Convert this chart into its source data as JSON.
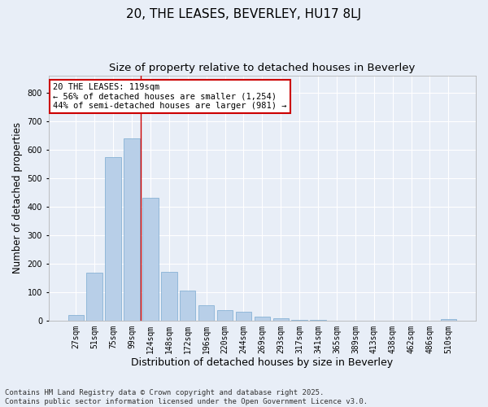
{
  "title": "20, THE LEASES, BEVERLEY, HU17 8LJ",
  "subtitle": "Size of property relative to detached houses in Beverley",
  "xlabel": "Distribution of detached houses by size in Beverley",
  "ylabel": "Number of detached properties",
  "categories": [
    "27sqm",
    "51sqm",
    "75sqm",
    "99sqm",
    "124sqm",
    "148sqm",
    "172sqm",
    "196sqm",
    "220sqm",
    "244sqm",
    "269sqm",
    "293sqm",
    "317sqm",
    "341sqm",
    "365sqm",
    "389sqm",
    "413sqm",
    "438sqm",
    "462sqm",
    "486sqm",
    "510sqm"
  ],
  "values": [
    20,
    168,
    575,
    640,
    430,
    170,
    104,
    54,
    38,
    30,
    13,
    8,
    3,
    3,
    0,
    0,
    0,
    0,
    0,
    0,
    5
  ],
  "bar_color": "#b8cfe8",
  "bar_edge_color": "#7aaad0",
  "bg_color": "#e8eef7",
  "grid_color": "#ffffff",
  "redline_index": 4,
  "annotation_text": "20 THE LEASES: 119sqm\n← 56% of detached houses are smaller (1,254)\n44% of semi-detached houses are larger (981) →",
  "annotation_box_color": "#ffffff",
  "annotation_border_color": "#cc0000",
  "ylim": [
    0,
    860
  ],
  "yticks": [
    0,
    100,
    200,
    300,
    400,
    500,
    600,
    700,
    800
  ],
  "footer_line1": "Contains HM Land Registry data © Crown copyright and database right 2025.",
  "footer_line2": "Contains public sector information licensed under the Open Government Licence v3.0.",
  "title_fontsize": 11,
  "subtitle_fontsize": 9.5,
  "xlabel_fontsize": 9,
  "ylabel_fontsize": 8.5,
  "tick_fontsize": 7,
  "annotation_fontsize": 7.5,
  "footer_fontsize": 6.5
}
